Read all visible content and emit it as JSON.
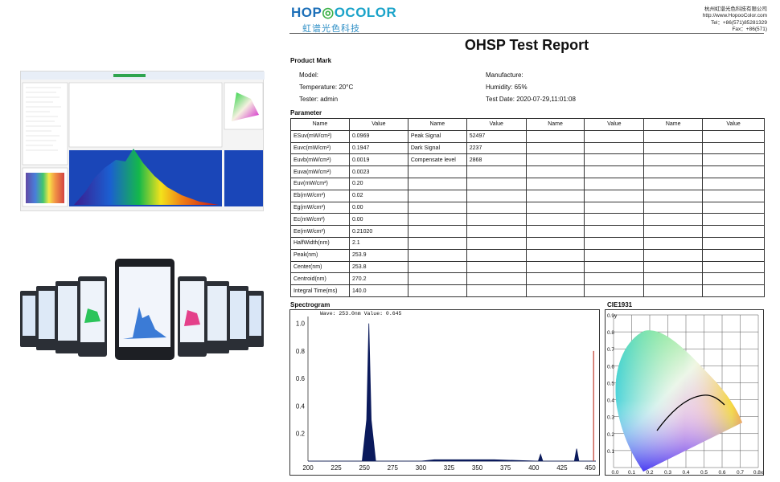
{
  "brand": {
    "name_part1": "HOP",
    "name_part2": "OCOLOR",
    "subtitle": "虹谱光色科技"
  },
  "contact": {
    "company": "杭州虹谱光色科技有限公司",
    "website": "http://www.HopooColor.com",
    "tel": "Tel：+86(571)85281329",
    "fax": "Fax：+86(571)"
  },
  "report": {
    "title": "OHSP Test Report"
  },
  "product_mark": {
    "title": "Product Mark",
    "model": "Model:",
    "manufacture": "Manufacture:",
    "temperature": "Temperature: 20°C",
    "humidity": "Humidity: 65%",
    "tester": "Tester: admin",
    "test_date": "Test Date: 2020-07-29,11:01:08"
  },
  "parameter": {
    "title": "Parameter",
    "headers": [
      "Name",
      "Value",
      "Name",
      "Value",
      "Name",
      "Value",
      "Name",
      "Value"
    ],
    "rows": [
      [
        "ESuv(mW/cm²)",
        "0.0969",
        "Peak Signal",
        "52497"
      ],
      [
        "Euvc(mW/cm²)",
        "0.1947",
        "Dark Signal",
        "2237"
      ],
      [
        "Euvb(mW/cm²)",
        "0.0019",
        "Compensate level",
        "2868"
      ],
      [
        "Euva(mW/cm²)",
        "0.0023",
        "",
        ""
      ],
      [
        "Euv(mW/cm²)",
        "0.20",
        "",
        ""
      ],
      [
        "Eb(mW/cm²)",
        "0.02",
        "",
        ""
      ],
      [
        "Eg(mW/cm²)",
        "0.00",
        "",
        ""
      ],
      [
        "Ec(mW/cm²)",
        "0.00",
        "",
        ""
      ],
      [
        "Ee(mW/cm²)",
        "0.21020",
        "",
        ""
      ],
      [
        "HalfWidth(nm)",
        "2.1",
        "",
        ""
      ],
      [
        "Peak(nm)",
        "253.9",
        "",
        ""
      ],
      [
        "Center(nm)",
        "253.8",
        "",
        ""
      ],
      [
        "Centroid(nm)",
        "270.2",
        "",
        ""
      ],
      [
        "Integral Time(ms)",
        "140.0",
        "",
        ""
      ]
    ]
  },
  "spectrogram": {
    "title": "Spectrogram",
    "readout": "Wave: 253.0nm Value: 0.645"
  },
  "cie": {
    "title": "CIE1931",
    "x_ticks": [
      "0.0",
      "0.1",
      "0.2",
      "0.3",
      "0.4",
      "0.5",
      "0.6",
      "0.7",
      "0.8x"
    ],
    "y_ticks": [
      "0.9y",
      "0.8",
      "0.7",
      "0.6",
      "0.5",
      "0.4",
      "0.3",
      "0.2",
      "0.1"
    ]
  },
  "chart_data": {
    "type": "line",
    "x": [
      200,
      240,
      248,
      252,
      253.9,
      256,
      260,
      300,
      312,
      365,
      404,
      406,
      408,
      436,
      438,
      440,
      455
    ],
    "values": [
      0.0,
      0.0,
      0.0,
      0.3,
      1.0,
      0.3,
      0.0,
      0.0,
      0.01,
      0.01,
      0.0,
      0.05,
      0.0,
      0.0,
      0.09,
      0.0,
      0.0
    ],
    "x_ticks": [
      200,
      225,
      250,
      275,
      300,
      325,
      350,
      375,
      400,
      425,
      450
    ],
    "y_ticks": [
      0.2,
      0.4,
      0.6,
      0.8,
      1.0
    ],
    "xlim": [
      200,
      455
    ],
    "ylim": [
      0,
      1.05
    ],
    "grid": false,
    "marker_x": 453,
    "marker_color": "#c0392b",
    "line_color": "#0b1a5c"
  }
}
